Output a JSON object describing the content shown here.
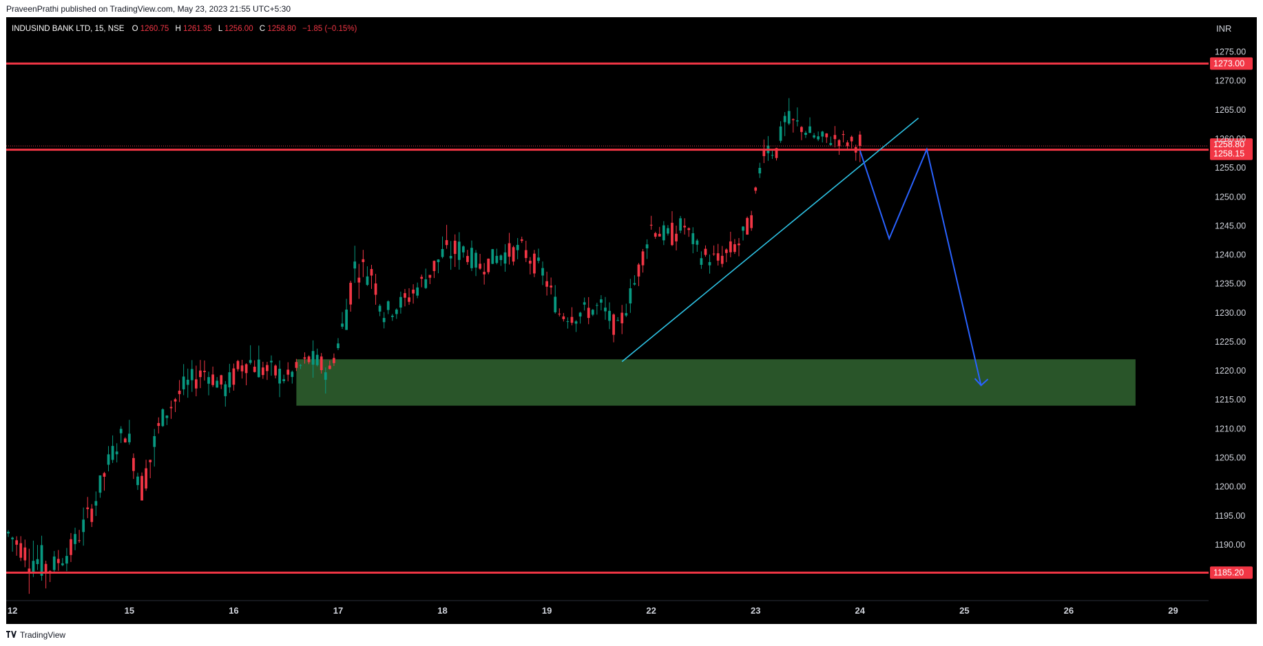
{
  "header": {
    "published_line": "PraveenPrathi published on TradingView.com, May 23, 2023 21:55 UTC+5:30"
  },
  "legend": {
    "symbol": "INDUSIND BANK LTD, 15, NSE",
    "o_label": "O",
    "o_value": "1260.75",
    "h_label": "H",
    "h_value": "1261.35",
    "l_label": "L",
    "l_value": "1256.00",
    "c_label": "C",
    "c_value": "1258.80",
    "change": "−1.85 (−0.15%)"
  },
  "footer": {
    "brand": "TradingView"
  },
  "colors": {
    "background": "#000000",
    "bullish": "#089981",
    "bearish": "#f23645",
    "level_line": "#f23645",
    "trendline": "#2ec4e6",
    "projection": "#2962ff",
    "zone_fill": "#2b5a2b",
    "axis_text": "#d1d4dc"
  },
  "chart_data": {
    "type": "candlestick",
    "symbol": "INDUSIND BANK LTD",
    "timeframe": "15",
    "exchange": "NSE",
    "currency": "INR",
    "ylim": [
      1180.5,
      1281.0
    ],
    "y_ticks": [
      "1190.00",
      "1195.00",
      "1200.00",
      "1205.00",
      "1210.00",
      "1215.00",
      "1220.00",
      "1225.00",
      "1230.00",
      "1235.00",
      "1240.00",
      "1245.00",
      "1250.00",
      "1255.00",
      "1260.00",
      "1265.00",
      "1270.00",
      "1275.00"
    ],
    "x_ticks": [
      {
        "label": "12",
        "bar": 1
      },
      {
        "label": "15",
        "bar": 29
      },
      {
        "label": "16",
        "bar": 54
      },
      {
        "label": "17",
        "bar": 79
      },
      {
        "label": "18",
        "bar": 104
      },
      {
        "label": "19",
        "bar": 129
      },
      {
        "label": "22",
        "bar": 154
      },
      {
        "label": "23",
        "bar": 179
      },
      {
        "label": "24",
        "bar": 204
      },
      {
        "label": "25",
        "bar": 229
      },
      {
        "label": "26",
        "bar": 254
      },
      {
        "label": "29",
        "bar": 279
      }
    ],
    "total_slots": 288,
    "anchors": [
      [
        0,
        1192,
        1194,
        1188
      ],
      [
        5,
        1188,
        1192,
        1183
      ],
      [
        10,
        1186,
        1189,
        1184
      ],
      [
        15,
        1189,
        1193,
        1187
      ],
      [
        20,
        1196,
        1199,
        1193
      ],
      [
        25,
        1206,
        1208,
        1203
      ],
      [
        28,
        1210,
        1214,
        1207
      ],
      [
        32,
        1200,
        1206,
        1197
      ],
      [
        37,
        1212,
        1215,
        1210
      ],
      [
        42,
        1217,
        1220,
        1214
      ],
      [
        47,
        1220,
        1223,
        1218
      ],
      [
        52,
        1217,
        1220,
        1214
      ],
      [
        57,
        1222,
        1226,
        1219
      ],
      [
        62,
        1220,
        1223,
        1217
      ],
      [
        67,
        1219,
        1221,
        1217
      ],
      [
        72,
        1222,
        1225,
        1219
      ],
      [
        77,
        1220,
        1222,
        1218
      ],
      [
        80,
        1227,
        1230,
        1220
      ],
      [
        83,
        1238,
        1243,
        1236
      ],
      [
        87,
        1237,
        1240,
        1234
      ],
      [
        90,
        1230,
        1233,
        1228
      ],
      [
        95,
        1232,
        1235,
        1230
      ],
      [
        100,
        1236,
        1239,
        1233
      ],
      [
        104,
        1240,
        1245,
        1238
      ],
      [
        109,
        1241,
        1244,
        1239
      ],
      [
        113,
        1238,
        1241,
        1236
      ],
      [
        118,
        1240,
        1243,
        1238
      ],
      [
        123,
        1241,
        1244,
        1239
      ],
      [
        128,
        1237,
        1240,
        1235
      ],
      [
        132,
        1230,
        1233,
        1227
      ],
      [
        137,
        1230,
        1233,
        1228
      ],
      [
        142,
        1231,
        1234,
        1229
      ],
      [
        146,
        1227,
        1229,
        1224
      ],
      [
        150,
        1235,
        1238,
        1233
      ],
      [
        154,
        1245,
        1247,
        1242
      ],
      [
        158,
        1243,
        1246,
        1240
      ],
      [
        162,
        1245,
        1247,
        1243
      ],
      [
        166,
        1240,
        1243,
        1238
      ],
      [
        170,
        1239,
        1242,
        1237
      ],
      [
        175,
        1242,
        1245,
        1240
      ],
      [
        178,
        1246,
        1248,
        1244
      ],
      [
        181,
        1259,
        1261,
        1255
      ],
      [
        184,
        1258,
        1261,
        1256
      ],
      [
        186,
        1263,
        1266,
        1260
      ],
      [
        190,
        1262,
        1264,
        1260
      ],
      [
        194,
        1260,
        1262,
        1258
      ],
      [
        199,
        1260,
        1262,
        1258
      ],
      [
        204,
        1258.8,
        1261.35,
        1256
      ]
    ],
    "support_zone": {
      "from_bar": 69,
      "to_bar": 270,
      "top": 1222,
      "bottom": 1214
    },
    "levels": [
      {
        "price": 1273.0,
        "label": "1273.00"
      },
      {
        "price": 1258.15,
        "label": "1258.15"
      },
      {
        "price": 1185.2,
        "label": "1185.20"
      }
    ],
    "last_price": {
      "price": 1258.8,
      "label": "1258.80"
    },
    "trendline": [
      [
        147,
        1221.6
      ],
      [
        218,
        1263.6
      ]
    ],
    "projection_path": [
      [
        204,
        1258.0
      ],
      [
        211,
        1242.8
      ],
      [
        220,
        1258.2
      ],
      [
        233,
        1217.5
      ]
    ]
  }
}
